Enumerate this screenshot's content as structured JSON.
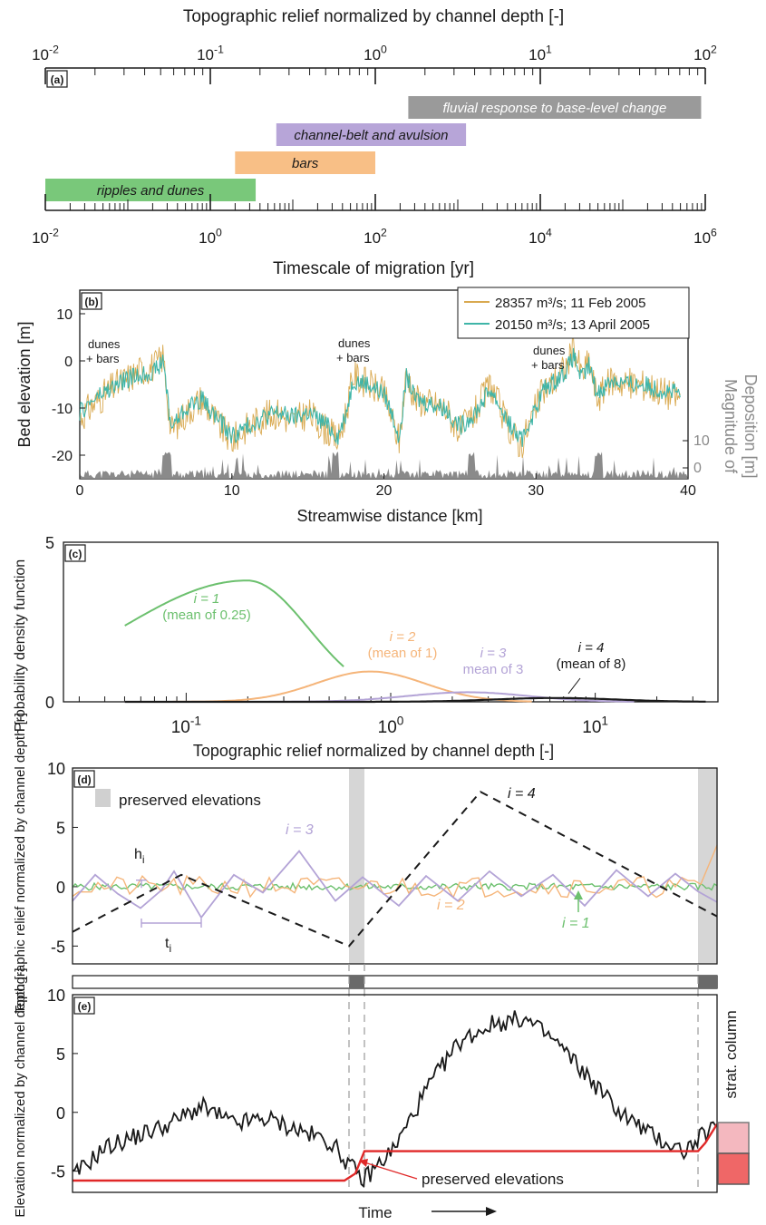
{
  "panel_a": {
    "panel_label": "(a)",
    "top_axis_title": "Topographic relief normalized by channel depth [-]",
    "top_ticks": [
      "10^-2",
      "10^-1",
      "10^0",
      "10^1",
      "10^2"
    ],
    "bottom_axis_title": "Timescale of migration [yr]",
    "bottom_ticks": [
      "10^-2",
      "10^0",
      "10^2",
      "10^4",
      "10^6"
    ],
    "bars": [
      {
        "label": "fluvial response to base-level change",
        "log_from": 2.4,
        "log_to": 5.95,
        "row": 0,
        "color": "#9a9a9a",
        "text_color": "#ffffff"
      },
      {
        "label": "channel-belt and avulsion",
        "log_from": 0.8,
        "log_to": 3.1,
        "row": 1,
        "color": "#b7a5d8",
        "text_color": "#1a1a1a"
      },
      {
        "label": "bars",
        "log_from": 0.3,
        "log_to": 2.0,
        "row": 2,
        "color": "#f8bf86",
        "text_color": "#1a1a1a"
      },
      {
        "label": "ripples and dunes",
        "log_from": -2.0,
        "log_to": 0.55,
        "row": 3,
        "color": "#79c87a",
        "text_color": "#1a1a1a"
      }
    ]
  },
  "panel_b": {
    "panel_label": "(b)",
    "ylabel": "Bed elevation [m]",
    "xlabel": "Streamwise distance [km]",
    "right_label_1": "Magnitude of",
    "right_label_2": "Deposition [m]",
    "x_ticks": [
      "0",
      "10",
      "20",
      "30",
      "40"
    ],
    "y_ticks": [
      "10",
      "0",
      "-10",
      "-20"
    ],
    "right_ticks": [
      "10",
      "0"
    ],
    "annotations": [
      "dunes",
      "+ bars",
      "dunes",
      "+ bars",
      "dunes",
      "+ bars"
    ],
    "legend": [
      {
        "color": "#d9a950",
        "label": "28357 m³/s; 11 Feb 2005"
      },
      {
        "color": "#3fb5a8",
        "label": "20150 m³/s; 13 April 2005"
      }
    ]
  },
  "panel_c": {
    "panel_label": "(c)",
    "ylabel": "Probability density function",
    "xlabel": "Topographic relief normalized by channel depth [-]",
    "y_ticks": [
      "5",
      "0"
    ],
    "x_ticks": [
      "10^-1",
      "10^0",
      "10^1"
    ],
    "curve_labels": [
      {
        "i": "i = 1",
        "mean": "(mean of 0.25)",
        "color": "#6cc06e"
      },
      {
        "i": "i = 2",
        "mean": "(mean of 1)",
        "color": "#f5b57a"
      },
      {
        "i": "i = 3",
        "mean": "mean of 3",
        "color": "#b3a3d6"
      },
      {
        "i": "i = 4",
        "mean": "(mean of 8)",
        "color": "#1a1a1a"
      }
    ]
  },
  "panel_d": {
    "panel_label": "(d)",
    "ylabel": "Topographic relief normalized by channel depth [-]",
    "ylabel_short": "Elevation normalized by channel depth [-]",
    "legend_label": "preserved elevations",
    "y_ticks": [
      "10",
      "5",
      "0",
      "-5"
    ],
    "label_h": "h",
    "label_t": "t",
    "label_sub": "i",
    "series_labels": [
      "i = 4",
      "i = 3",
      "i = 2",
      "i = 1"
    ]
  },
  "panel_e": {
    "panel_label": "(e)",
    "ylabel": "Elevation normalized by channel depth [-]",
    "y_ticks": [
      "10",
      "5",
      "0",
      "-5"
    ],
    "annotation": "preserved elevations",
    "column_label": "strat. column",
    "xlabel": "Time"
  },
  "chart_data": [
    {
      "type": "bar",
      "title": "Topographic relief normalized by channel depth [-]",
      "xlabel": "Timescale of migration [yr]",
      "categories": [
        "fluvial response to base-level change",
        "channel-belt and avulsion",
        "bars",
        "ripples and dunes"
      ],
      "series": [
        {
          "name": "start (log10 yr)",
          "values": [
            2.4,
            0.8,
            0.3,
            -2.0
          ]
        },
        {
          "name": "end (log10 yr)",
          "values": [
            5.95,
            3.1,
            2.0,
            0.55
          ]
        }
      ],
      "xlim": [
        -2,
        6
      ],
      "scale": "log"
    },
    {
      "type": "line",
      "xlabel": "Streamwise distance [km]",
      "ylabel": "Bed elevation [m]",
      "xlim": [
        0,
        40
      ],
      "ylim": [
        -25,
        15
      ],
      "series": [
        {
          "name": "28357 m3/s; 11 Feb 2005",
          "x": [
            0,
            1,
            2,
            3,
            4,
            5,
            5.5,
            6,
            7,
            8,
            9,
            10,
            11,
            12,
            13,
            14,
            15,
            16,
            17,
            17.5,
            18,
            19,
            20,
            20.5,
            21,
            21.5,
            22,
            23,
            24,
            25,
            26,
            27,
            28,
            29,
            30,
            30.5,
            31,
            32,
            32.5,
            33,
            33.5,
            34,
            35,
            36,
            37,
            38,
            39.5
          ],
          "y": [
            -12,
            -9,
            -6,
            -4,
            -2,
            -1,
            1,
            -15,
            -11,
            -8,
            -13,
            -17,
            -14,
            -12,
            -11,
            -13,
            -11,
            -14,
            -17,
            -11,
            -3,
            -5,
            -7,
            -12,
            -17,
            -2,
            -8,
            -9,
            -10,
            -15,
            -11,
            -5,
            -13,
            -18,
            -10,
            -6,
            -5,
            -1,
            3,
            -3,
            0,
            -8,
            -4,
            -5,
            -5,
            -6,
            -8
          ]
        },
        {
          "name": "20150 m3/s; 13 April 2005",
          "x": [
            0,
            1,
            2,
            3,
            4,
            5,
            5.5,
            6,
            7,
            8,
            9,
            10,
            11,
            12,
            13,
            14,
            15,
            16,
            17,
            17.5,
            18,
            19,
            20,
            20.5,
            21,
            21.5,
            22,
            23,
            24,
            25,
            26,
            27,
            28,
            29,
            30,
            30.5,
            31,
            32,
            32.5,
            33,
            33.5,
            34,
            35,
            36,
            37,
            38,
            39.5
          ],
          "y": [
            -11,
            -8,
            -6,
            -4,
            -3,
            -2,
            0,
            -14,
            -10,
            -8,
            -12,
            -16,
            -14,
            -12,
            -11,
            -12,
            -11,
            -13,
            -16,
            -11,
            -4,
            -5,
            -7,
            -11,
            -16,
            -3,
            -8,
            -9,
            -10,
            -14,
            -11,
            -6,
            -12,
            -17,
            -10,
            -6,
            -5,
            -2,
            1,
            -4,
            -1,
            -7,
            -4,
            -5,
            -5,
            -6,
            -7
          ]
        }
      ]
    },
    {
      "type": "line",
      "xlabel": "Topographic relief normalized by channel depth [-]",
      "ylabel": "Probability density function",
      "ylim": [
        0,
        5
      ],
      "scale": "log-x",
      "series": [
        {
          "name": "i = 1 (mean of 0.25)",
          "mean": 0.25,
          "peak": 3.8
        },
        {
          "name": "i = 2 (mean of 1)",
          "mean": 1,
          "peak": 0.95
        },
        {
          "name": "i = 3 mean of 3",
          "mean": 3,
          "peak": 0.3
        },
        {
          "name": "i = 4 (mean of 8)",
          "mean": 8,
          "peak": 0.12
        }
      ]
    },
    {
      "type": "line",
      "ylabel": "Topographic relief normalized by channel depth [-]",
      "ylim": [
        -6,
        10
      ],
      "series": [
        {
          "name": "i = 4",
          "x": [
            0,
            0.17,
            0.5,
            0.83,
            1
          ],
          "y": [
            -3.8,
            1,
            -5,
            8,
            -2.5
          ]
        },
        {
          "name": "i = 3",
          "amplitude": 2.2
        },
        {
          "name": "i = 2",
          "amplitude": 0.8
        },
        {
          "name": "i = 1",
          "amplitude": 0.3
        }
      ]
    },
    {
      "type": "line",
      "xlabel": "Time",
      "ylabel": "Elevation normalized by channel depth [-]",
      "ylim": [
        -6.5,
        10
      ],
      "series": [
        {
          "name": "elevation",
          "x": [
            0,
            0.05,
            0.1,
            0.15,
            0.2,
            0.25,
            0.3,
            0.35,
            0.4,
            0.45,
            0.5,
            0.55,
            0.6,
            0.65,
            0.7,
            0.75,
            0.8,
            0.85,
            0.9,
            0.95,
            1
          ],
          "y": [
            -5.5,
            -3,
            -2,
            -1,
            0.5,
            -1,
            -0.5,
            -1.5,
            -2.5,
            -5.8,
            -3,
            2,
            6,
            7.5,
            8,
            6,
            3,
            0,
            -2,
            -3.3,
            -1
          ]
        },
        {
          "name": "preserved elevations",
          "x": [
            0,
            0.41,
            0.44,
            0.94,
            0.97,
            1
          ],
          "y": [
            -5.8,
            -5.8,
            -3.3,
            -3.3,
            -2.2,
            -1
          ]
        }
      ]
    }
  ]
}
